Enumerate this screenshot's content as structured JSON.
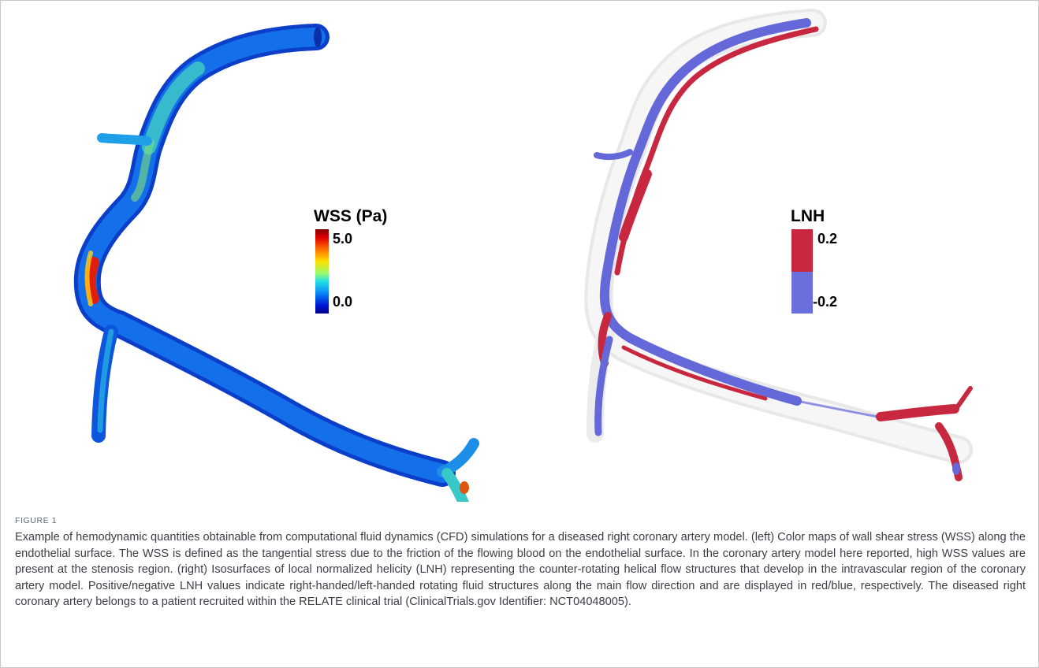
{
  "figure": {
    "left_panel": {
      "colorbar": {
        "title": "WSS (Pa)",
        "max_label": "5.0",
        "min_label": "0.0",
        "colormap": [
          "#800000",
          "#e00000",
          "#ff7a00",
          "#ffe000",
          "#9cfa68",
          "#22e0e6",
          "#0a8cf5",
          "#0018d8",
          "#00008a"
        ]
      }
    },
    "right_panel": {
      "colorbar": {
        "title": "LNH",
        "max_label": "0.2",
        "min_label": "-0.2",
        "positive_color": "#c8283f",
        "negative_color": "#6a6fdc"
      }
    }
  },
  "caption": {
    "label": "FIGURE 1",
    "text": "Example of hemodynamic quantities obtainable from computational fluid dynamics (CFD) simulations for a diseased right coronary artery model. (left) Color maps of wall shear stress (WSS) along the endothelial surface. The WSS is defined as the tangential stress due to the friction of the flowing blood on the endothelial surface. In the coronary artery model here reported, high WSS values are present at the stenosis region. (right) Isosurfaces of local normalized helicity (LNH) representing the counter-rotating helical flow structures that develop in the intravascular region of the coronary artery model. Positive/negative LNH values indicate right-handed/left-handed rotating fluid structures along the main flow direction and are displayed in red/blue, respectively. The diseased right coronary artery belongs to a patient recruited within the RELATE clinical trial (ClinicalTrials.gov Identifier: NCT04048005)."
  }
}
